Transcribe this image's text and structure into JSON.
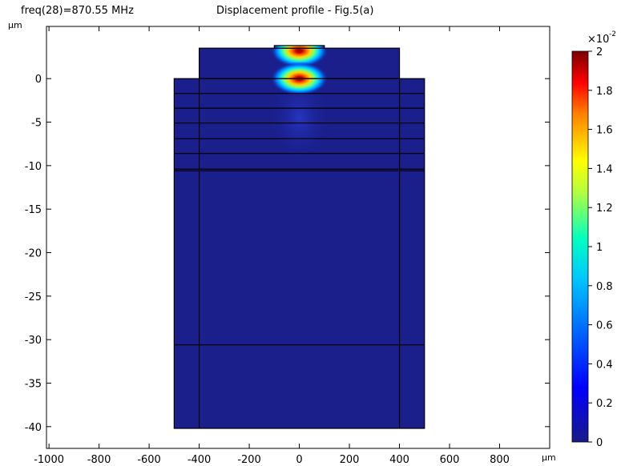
{
  "header": {
    "frequency_label": "freq(28)=870.55 MHz",
    "title": "Displacement profile - Fig.5(a)"
  },
  "chart_data": {
    "type": "heatmap",
    "title": "Displacement profile - Fig.5(a)",
    "annotation": "freq(28)=870.55 MHz",
    "x_unit": "µm",
    "y_unit": "µm",
    "xlim": [
      -1010,
      1000
    ],
    "ylim": [
      -42.5,
      6
    ],
    "x_ticks": [
      -1000,
      -800,
      -600,
      -400,
      -200,
      0,
      200,
      400,
      600,
      800
    ],
    "y_ticks": [
      0,
      -5,
      -10,
      -15,
      -20,
      -25,
      -30,
      -35,
      -40
    ],
    "colorbar": {
      "min": 0,
      "max": 2,
      "exponent_label": "×10",
      "exponent": "-2",
      "ticks": [
        0,
        0.2,
        0.4,
        0.6,
        0.8,
        1,
        1.2,
        1.4,
        1.6,
        1.8,
        2
      ],
      "colormap": "rainbow",
      "colors": [
        "#1a1a8a",
        "#0000ff",
        "#00a0ff",
        "#00ffc0",
        "#ffff00",
        "#ff8000",
        "#ff0000",
        "#7a0000"
      ]
    },
    "background_color": "#1a1f8c",
    "structure": {
      "top_block": {
        "x": [
          -400,
          400
        ],
        "y": [
          0,
          3.5
        ]
      },
      "electrode": {
        "x": [
          -100,
          100
        ],
        "y": [
          3.5,
          3.8
        ]
      },
      "main_block": {
        "x": [
          -500,
          500
        ],
        "y": [
          -40.2,
          0
        ]
      },
      "inner_verticals_x": [
        -400,
        400
      ],
      "layer_lines_y": [
        -1.7,
        -3.4,
        -5.1,
        -6.9,
        -8.6,
        -10.4,
        -10.6
      ],
      "lower_line_y": -30.6
    },
    "hotspots": [
      {
        "x": 0,
        "y": 3.2,
        "value": 1.9
      },
      {
        "x": 0,
        "y": 0,
        "value": 2.0
      }
    ]
  }
}
